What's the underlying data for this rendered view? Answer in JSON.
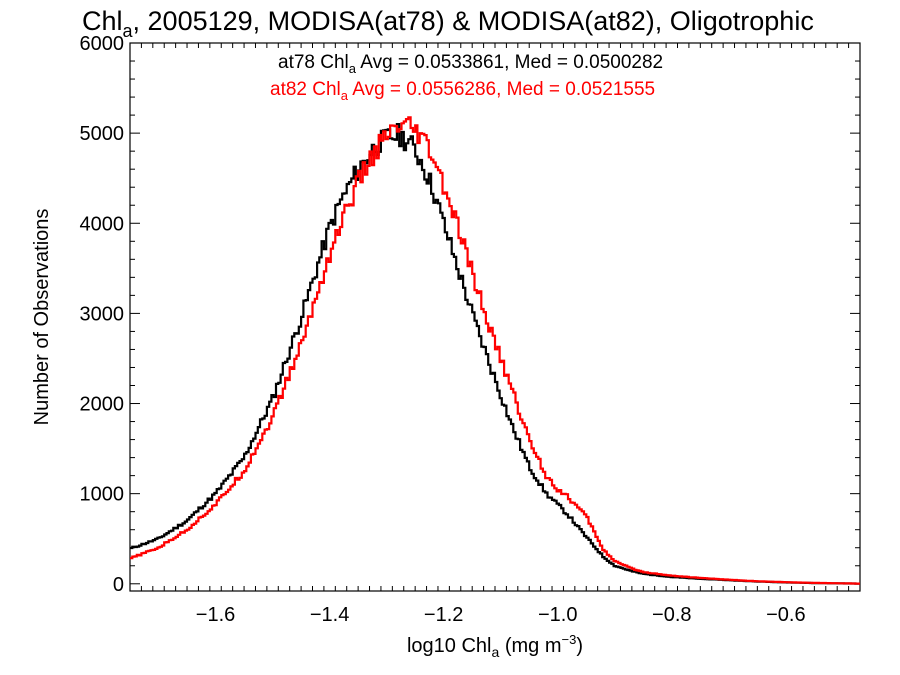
{
  "chart_data": {
    "type": "line",
    "title_main": "Chl",
    "title_sub": "a",
    "title_rest": ", 2005129, MODISA(at78) & MODISA(at82), Oligotrophic",
    "xlabel_main": "log10 Chl",
    "xlabel_sub": "a",
    "xlabel_rest": " (mg m",
    "xlabel_sup": "−3",
    "xlabel_end": ")",
    "ylabel": "Number of Observations",
    "xlim": [
      -1.75,
      -0.47
    ],
    "ylim": [
      -80,
      6000
    ],
    "x_ticks": [
      -1.6,
      -1.4,
      -1.2,
      -1.0,
      -0.8,
      -0.6
    ],
    "x_tick_labels": [
      "−1.6",
      "−1.4",
      "−1.2",
      "−1.0",
      "−0.8",
      "−0.6"
    ],
    "y_ticks": [
      0,
      1000,
      2000,
      3000,
      4000,
      5000,
      6000
    ],
    "y_tick_labels": [
      "0",
      "1000",
      "2000",
      "3000",
      "4000",
      "5000",
      "6000"
    ],
    "stats": [
      {
        "prefix": "at78 Chl",
        "sub": "a",
        "rest": " Avg = 0.0533861, Med = 0.0500282",
        "color": "#000000"
      },
      {
        "prefix": "at82 Chl",
        "sub": "a",
        "rest": " Avg = 0.0556286, Med = 0.0521555",
        "color": "#ff0000"
      }
    ],
    "series": [
      {
        "color": "#000000",
        "x": [
          -1.75,
          -1.7,
          -1.65,
          -1.6,
          -1.55,
          -1.5,
          -1.45,
          -1.4,
          -1.38,
          -1.35,
          -1.32,
          -1.3,
          -1.28,
          -1.26,
          -1.24,
          -1.22,
          -1.2,
          -1.18,
          -1.15,
          -1.12,
          -1.1,
          -1.08,
          -1.05,
          -1.02,
          -1.0,
          -0.98,
          -0.95,
          -0.92,
          -0.9,
          -0.87,
          -0.85,
          -0.8,
          -0.75,
          -0.7,
          -0.65,
          -0.6,
          -0.55,
          -0.5,
          -0.47
        ],
        "values": [
          390,
          500,
          700,
          1000,
          1400,
          2050,
          2950,
          3950,
          4250,
          4600,
          4850,
          4950,
          4980,
          4900,
          4700,
          4400,
          4000,
          3600,
          3000,
          2450,
          2100,
          1750,
          1300,
          1000,
          880,
          750,
          520,
          300,
          200,
          140,
          110,
          75,
          55,
          40,
          25,
          15,
          8,
          4,
          2
        ]
      },
      {
        "color": "#ff0000",
        "x": [
          -1.75,
          -1.7,
          -1.65,
          -1.6,
          -1.55,
          -1.5,
          -1.45,
          -1.4,
          -1.38,
          -1.35,
          -1.32,
          -1.3,
          -1.28,
          -1.26,
          -1.24,
          -1.22,
          -1.2,
          -1.18,
          -1.15,
          -1.12,
          -1.1,
          -1.08,
          -1.05,
          -1.02,
          -1.0,
          -0.98,
          -0.95,
          -0.92,
          -0.9,
          -0.87,
          -0.85,
          -0.8,
          -0.75,
          -0.7,
          -0.65,
          -0.6,
          -0.55,
          -0.5,
          -0.47
        ],
        "values": [
          280,
          400,
          600,
          880,
          1250,
          1850,
          2650,
          3650,
          4000,
          4450,
          4800,
          4950,
          5050,
          5050,
          4950,
          4750,
          4400,
          4050,
          3450,
          2850,
          2500,
          2150,
          1600,
          1200,
          1050,
          950,
          750,
          380,
          250,
          170,
          130,
          90,
          65,
          45,
          28,
          18,
          10,
          5,
          2
        ]
      }
    ]
  }
}
